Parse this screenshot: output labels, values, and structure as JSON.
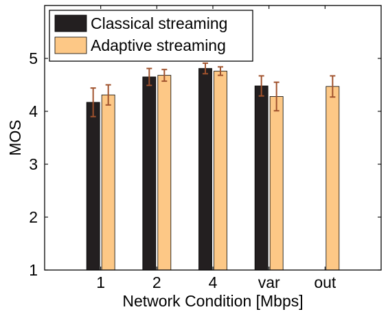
{
  "chart_data": {
    "type": "bar",
    "xlabel": "Network Condition [Mbps]",
    "ylabel": "MOS",
    "ylim": [
      1,
      6
    ],
    "yticks": [
      1,
      2,
      3,
      4,
      5
    ],
    "categories": [
      "1",
      "2",
      "4",
      "var",
      "out"
    ],
    "grid": false,
    "legend_position": "top-left",
    "series": [
      {
        "name": "Classical streaming",
        "color": "#231f20",
        "values": [
          4.17,
          4.65,
          4.81,
          4.48,
          null
        ],
        "error": [
          0.27,
          0.16,
          0.1,
          0.19,
          null
        ]
      },
      {
        "name": "Adaptive streaming",
        "color": "#fdc886",
        "values": [
          4.31,
          4.68,
          4.76,
          4.28,
          4.47
        ],
        "error": [
          0.19,
          0.11,
          0.08,
          0.27,
          0.2
        ]
      }
    ],
    "errorbar_color": "#a0522d"
  }
}
